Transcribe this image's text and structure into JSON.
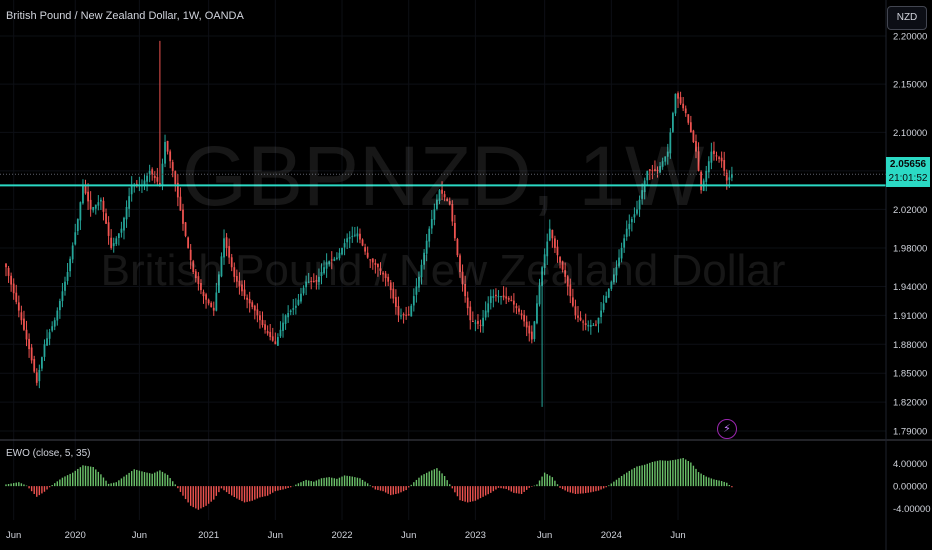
{
  "header": {
    "title": "British Pound / New Zealand Dollar, 1W, OANDA",
    "watermark_symbol": "GBPNZD, 1W",
    "watermark_name": "British Pound / New Zealand Dollar",
    "currency_badge": "NZD",
    "last_price": "2.05656",
    "countdown": "21:01:52",
    "alert_icon": "lightning-bolt-icon"
  },
  "indicator": {
    "label": "EWO (close, 5, 35)",
    "ticks": [
      "4.00000",
      "0.00000",
      "-4.00000"
    ]
  },
  "colors": {
    "up": "#26a69a",
    "down": "#ef5350",
    "osc_up": "#6cc26b",
    "osc_down": "#ef5350",
    "support_line": "#2bd9c4",
    "background": "#000000",
    "text": "#d1d4dc"
  },
  "chart_data": [
    {
      "type": "candlestick",
      "symbol": "GBPNZD",
      "interval": "1W",
      "ylim": [
        1.79,
        2.2
      ],
      "y_ticks": [
        "2.20000",
        "2.15000",
        "2.10000",
        "2.06000",
        "2.02000",
        "1.98000",
        "1.94000",
        "1.91000",
        "1.88000",
        "1.85000",
        "1.82000",
        "1.79000"
      ],
      "x_ticks": [
        "Jun",
        "2020",
        "Jun",
        "2021",
        "Jun",
        "2022",
        "Jun",
        "2023",
        "Jun",
        "2024",
        "Jun"
      ],
      "horizontal_line": 2.045,
      "last_close": 2.05656,
      "anchors": [
        [
          0,
          1.96
        ],
        [
          5,
          1.915
        ],
        [
          9,
          1.875
        ],
        [
          12,
          1.84
        ],
        [
          15,
          1.88
        ],
        [
          19,
          1.905
        ],
        [
          24,
          1.955
        ],
        [
          28,
          2.01
        ],
        [
          30,
          2.045
        ],
        [
          33,
          2.02
        ],
        [
          37,
          2.03
        ],
        [
          41,
          1.98
        ],
        [
          45,
          2.0
        ],
        [
          49,
          2.045
        ],
        [
          53,
          2.045
        ],
        [
          56,
          2.06
        ],
        [
          60,
          2.045
        ],
        [
          62,
          2.09
        ],
        [
          65,
          2.06
        ],
        [
          69,
          2.005
        ],
        [
          73,
          1.955
        ],
        [
          77,
          1.93
        ],
        [
          81,
          1.915
        ],
        [
          85,
          1.99
        ],
        [
          89,
          1.95
        ],
        [
          93,
          1.93
        ],
        [
          97,
          1.915
        ],
        [
          101,
          1.895
        ],
        [
          105,
          1.88
        ],
        [
          109,
          1.91
        ],
        [
          113,
          1.92
        ],
        [
          117,
          1.945
        ],
        [
          121,
          1.945
        ],
        [
          125,
          1.965
        ],
        [
          129,
          1.97
        ],
        [
          133,
          1.99
        ],
        [
          137,
          1.995
        ],
        [
          141,
          1.97
        ],
        [
          145,
          1.96
        ],
        [
          149,
          1.945
        ],
        [
          153,
          1.91
        ],
        [
          157,
          1.91
        ],
        [
          161,
          1.95
        ],
        [
          165,
          2.0
        ],
        [
          169,
          2.04
        ],
        [
          173,
          2.025
        ],
        [
          177,
          1.955
        ],
        [
          181,
          1.905
        ],
        [
          185,
          1.9
        ],
        [
          189,
          1.93
        ],
        [
          193,
          1.93
        ],
        [
          197,
          1.925
        ],
        [
          201,
          1.91
        ],
        [
          205,
          1.885
        ],
        [
          209,
          1.96
        ],
        [
          212,
          2.0
        ],
        [
          214,
          1.98
        ],
        [
          218,
          1.95
        ],
        [
          222,
          1.91
        ],
        [
          226,
          1.9
        ],
        [
          230,
          1.9
        ],
        [
          234,
          1.93
        ],
        [
          238,
          1.96
        ],
        [
          242,
          2.0
        ],
        [
          246,
          2.02
        ],
        [
          250,
          2.06
        ],
        [
          254,
          2.06
        ],
        [
          258,
          2.08
        ],
        [
          261,
          2.14
        ],
        [
          265,
          2.12
        ],
        [
          269,
          2.08
        ],
        [
          271,
          2.04
        ],
        [
          275,
          2.08
        ],
        [
          279,
          2.07
        ],
        [
          281,
          2.05
        ],
        [
          283,
          2.05656
        ]
      ]
    },
    {
      "type": "bar",
      "name": "EWO (close, 5, 35)",
      "ylim": [
        -4.6,
        5.0
      ],
      "y_ticks": [
        4,
        0,
        -4
      ],
      "anchors": [
        [
          0,
          0.3
        ],
        [
          5,
          0.7
        ],
        [
          8,
          0.1
        ],
        [
          12,
          -1.9
        ],
        [
          15,
          -1.0
        ],
        [
          18,
          0.2
        ],
        [
          22,
          1.5
        ],
        [
          26,
          2.4
        ],
        [
          30,
          3.7
        ],
        [
          34,
          3.4
        ],
        [
          37,
          2.1
        ],
        [
          40,
          0.4
        ],
        [
          43,
          0.7
        ],
        [
          46,
          1.7
        ],
        [
          50,
          3.0
        ],
        [
          54,
          2.5
        ],
        [
          57,
          2.2
        ],
        [
          60,
          2.8
        ],
        [
          63,
          2.0
        ],
        [
          66,
          0.3
        ],
        [
          69,
          -1.7
        ],
        [
          72,
          -3.5
        ],
        [
          75,
          -4.2
        ],
        [
          78,
          -3.5
        ],
        [
          81,
          -2.4
        ],
        [
          84,
          -0.4
        ],
        [
          87,
          -1.4
        ],
        [
          90,
          -2.2
        ],
        [
          93,
          -2.9
        ],
        [
          96,
          -2.6
        ],
        [
          99,
          -2.0
        ],
        [
          102,
          -1.7
        ],
        [
          105,
          -0.9
        ],
        [
          108,
          -0.6
        ],
        [
          111,
          -0.2
        ],
        [
          114,
          0.5
        ],
        [
          117,
          1.1
        ],
        [
          120,
          0.8
        ],
        [
          123,
          1.4
        ],
        [
          126,
          1.6
        ],
        [
          129,
          1.3
        ],
        [
          132,
          1.9
        ],
        [
          135,
          1.7
        ],
        [
          138,
          1.4
        ],
        [
          141,
          0.5
        ],
        [
          144,
          -0.6
        ],
        [
          147,
          -0.9
        ],
        [
          150,
          -1.6
        ],
        [
          153,
          -1.3
        ],
        [
          156,
          -0.7
        ],
        [
          159,
          0.7
        ],
        [
          162,
          1.9
        ],
        [
          165,
          2.6
        ],
        [
          168,
          3.2
        ],
        [
          171,
          1.8
        ],
        [
          174,
          -0.4
        ],
        [
          177,
          -2.5
        ],
        [
          180,
          -2.9
        ],
        [
          183,
          -2.6
        ],
        [
          186,
          -1.9
        ],
        [
          189,
          -1.2
        ],
        [
          192,
          -0.3
        ],
        [
          195,
          -0.5
        ],
        [
          198,
          -1.2
        ],
        [
          201,
          -1.4
        ],
        [
          204,
          -0.3
        ],
        [
          207,
          0.3
        ],
        [
          210,
          2.4
        ],
        [
          213,
          1.6
        ],
        [
          216,
          -0.3
        ],
        [
          219,
          -1.0
        ],
        [
          222,
          -1.4
        ],
        [
          225,
          -1.3
        ],
        [
          228,
          -1.1
        ],
        [
          231,
          -0.8
        ],
        [
          234,
          -0.2
        ],
        [
          237,
          0.8
        ],
        [
          240,
          1.8
        ],
        [
          243,
          2.7
        ],
        [
          246,
          3.5
        ],
        [
          249,
          3.8
        ],
        [
          252,
          4.3
        ],
        [
          255,
          4.6
        ],
        [
          258,
          4.5
        ],
        [
          261,
          4.7
        ],
        [
          264,
          5.0
        ],
        [
          267,
          4.2
        ],
        [
          270,
          2.5
        ],
        [
          273,
          1.7
        ],
        [
          276,
          1.2
        ],
        [
          279,
          0.9
        ],
        [
          281,
          0.6
        ],
        [
          283,
          -0.2
        ]
      ]
    }
  ]
}
